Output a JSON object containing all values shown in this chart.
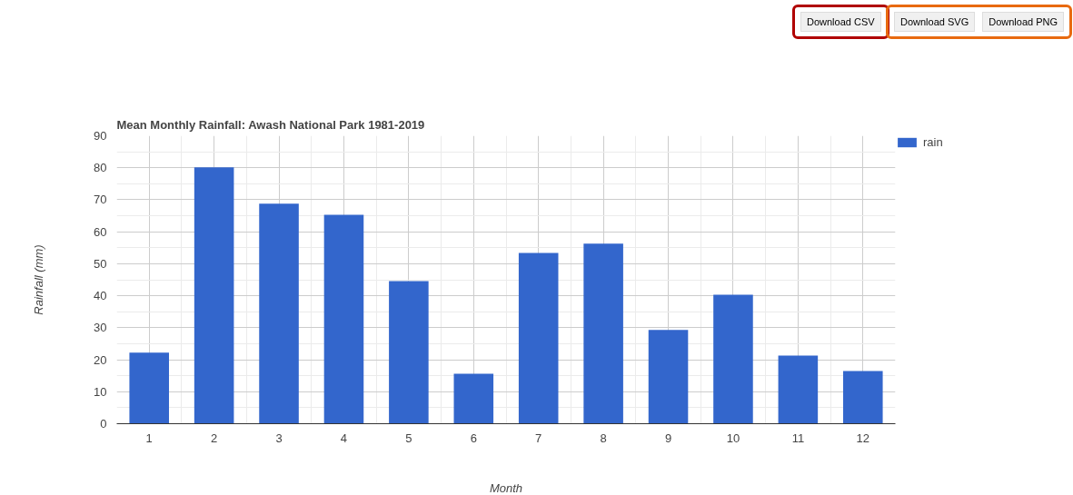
{
  "chart_data": {
    "type": "bar",
    "title": "Mean Monthly Rainfall: Awash National Park 1981-2019",
    "xlabel": "Month",
    "ylabel": "Rainfall (mm)",
    "x": [
      1,
      2,
      3,
      4,
      5,
      6,
      7,
      8,
      9,
      10,
      11,
      12
    ],
    "series": [
      {
        "name": "rain",
        "color": "#3366cc",
        "values": [
          22.2,
          80.1,
          68.8,
          65.3,
          44.6,
          15.6,
          53.4,
          56.3,
          29.3,
          40.3,
          21.3,
          16.5
        ]
      }
    ],
    "xlim": [
      0.5,
      12.5
    ],
    "xticks": [
      1,
      2,
      3,
      4,
      5,
      6,
      7,
      8,
      9,
      10,
      11,
      12
    ],
    "ylim": [
      0,
      90
    ],
    "yticks": [
      0,
      10,
      20,
      30,
      40,
      50,
      60,
      70,
      80,
      90
    ],
    "grid": true,
    "legend": "top right",
    "annotations": [
      "Download CSV",
      "Download SVG",
      "Download PNG"
    ]
  }
}
